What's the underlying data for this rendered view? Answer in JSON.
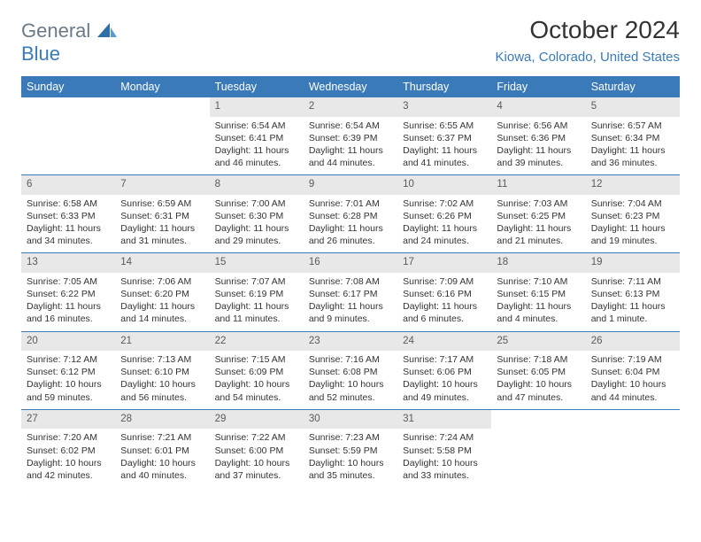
{
  "logo": {
    "word1": "General",
    "word2": "Blue"
  },
  "title": "October 2024",
  "location": "Kiowa, Colorado, United States",
  "colors": {
    "header_bg": "#3a7ab8",
    "header_text": "#ffffff",
    "daynum_bg": "#e8e8e8",
    "border": "#3a7ab8",
    "logo_gray": "#6b7a87",
    "logo_blue": "#3a7ab8"
  },
  "weekdays": [
    "Sunday",
    "Monday",
    "Tuesday",
    "Wednesday",
    "Thursday",
    "Friday",
    "Saturday"
  ],
  "weeks": [
    [
      {
        "day": "",
        "sunrise": "",
        "sunset": "",
        "daylight": ""
      },
      {
        "day": "",
        "sunrise": "",
        "sunset": "",
        "daylight": ""
      },
      {
        "day": "1",
        "sunrise": "Sunrise: 6:54 AM",
        "sunset": "Sunset: 6:41 PM",
        "daylight": "Daylight: 11 hours and 46 minutes."
      },
      {
        "day": "2",
        "sunrise": "Sunrise: 6:54 AM",
        "sunset": "Sunset: 6:39 PM",
        "daylight": "Daylight: 11 hours and 44 minutes."
      },
      {
        "day": "3",
        "sunrise": "Sunrise: 6:55 AM",
        "sunset": "Sunset: 6:37 PM",
        "daylight": "Daylight: 11 hours and 41 minutes."
      },
      {
        "day": "4",
        "sunrise": "Sunrise: 6:56 AM",
        "sunset": "Sunset: 6:36 PM",
        "daylight": "Daylight: 11 hours and 39 minutes."
      },
      {
        "day": "5",
        "sunrise": "Sunrise: 6:57 AM",
        "sunset": "Sunset: 6:34 PM",
        "daylight": "Daylight: 11 hours and 36 minutes."
      }
    ],
    [
      {
        "day": "6",
        "sunrise": "Sunrise: 6:58 AM",
        "sunset": "Sunset: 6:33 PM",
        "daylight": "Daylight: 11 hours and 34 minutes."
      },
      {
        "day": "7",
        "sunrise": "Sunrise: 6:59 AM",
        "sunset": "Sunset: 6:31 PM",
        "daylight": "Daylight: 11 hours and 31 minutes."
      },
      {
        "day": "8",
        "sunrise": "Sunrise: 7:00 AM",
        "sunset": "Sunset: 6:30 PM",
        "daylight": "Daylight: 11 hours and 29 minutes."
      },
      {
        "day": "9",
        "sunrise": "Sunrise: 7:01 AM",
        "sunset": "Sunset: 6:28 PM",
        "daylight": "Daylight: 11 hours and 26 minutes."
      },
      {
        "day": "10",
        "sunrise": "Sunrise: 7:02 AM",
        "sunset": "Sunset: 6:26 PM",
        "daylight": "Daylight: 11 hours and 24 minutes."
      },
      {
        "day": "11",
        "sunrise": "Sunrise: 7:03 AM",
        "sunset": "Sunset: 6:25 PM",
        "daylight": "Daylight: 11 hours and 21 minutes."
      },
      {
        "day": "12",
        "sunrise": "Sunrise: 7:04 AM",
        "sunset": "Sunset: 6:23 PM",
        "daylight": "Daylight: 11 hours and 19 minutes."
      }
    ],
    [
      {
        "day": "13",
        "sunrise": "Sunrise: 7:05 AM",
        "sunset": "Sunset: 6:22 PM",
        "daylight": "Daylight: 11 hours and 16 minutes."
      },
      {
        "day": "14",
        "sunrise": "Sunrise: 7:06 AM",
        "sunset": "Sunset: 6:20 PM",
        "daylight": "Daylight: 11 hours and 14 minutes."
      },
      {
        "day": "15",
        "sunrise": "Sunrise: 7:07 AM",
        "sunset": "Sunset: 6:19 PM",
        "daylight": "Daylight: 11 hours and 11 minutes."
      },
      {
        "day": "16",
        "sunrise": "Sunrise: 7:08 AM",
        "sunset": "Sunset: 6:17 PM",
        "daylight": "Daylight: 11 hours and 9 minutes."
      },
      {
        "day": "17",
        "sunrise": "Sunrise: 7:09 AM",
        "sunset": "Sunset: 6:16 PM",
        "daylight": "Daylight: 11 hours and 6 minutes."
      },
      {
        "day": "18",
        "sunrise": "Sunrise: 7:10 AM",
        "sunset": "Sunset: 6:15 PM",
        "daylight": "Daylight: 11 hours and 4 minutes."
      },
      {
        "day": "19",
        "sunrise": "Sunrise: 7:11 AM",
        "sunset": "Sunset: 6:13 PM",
        "daylight": "Daylight: 11 hours and 1 minute."
      }
    ],
    [
      {
        "day": "20",
        "sunrise": "Sunrise: 7:12 AM",
        "sunset": "Sunset: 6:12 PM",
        "daylight": "Daylight: 10 hours and 59 minutes."
      },
      {
        "day": "21",
        "sunrise": "Sunrise: 7:13 AM",
        "sunset": "Sunset: 6:10 PM",
        "daylight": "Daylight: 10 hours and 56 minutes."
      },
      {
        "day": "22",
        "sunrise": "Sunrise: 7:15 AM",
        "sunset": "Sunset: 6:09 PM",
        "daylight": "Daylight: 10 hours and 54 minutes."
      },
      {
        "day": "23",
        "sunrise": "Sunrise: 7:16 AM",
        "sunset": "Sunset: 6:08 PM",
        "daylight": "Daylight: 10 hours and 52 minutes."
      },
      {
        "day": "24",
        "sunrise": "Sunrise: 7:17 AM",
        "sunset": "Sunset: 6:06 PM",
        "daylight": "Daylight: 10 hours and 49 minutes."
      },
      {
        "day": "25",
        "sunrise": "Sunrise: 7:18 AM",
        "sunset": "Sunset: 6:05 PM",
        "daylight": "Daylight: 10 hours and 47 minutes."
      },
      {
        "day": "26",
        "sunrise": "Sunrise: 7:19 AM",
        "sunset": "Sunset: 6:04 PM",
        "daylight": "Daylight: 10 hours and 44 minutes."
      }
    ],
    [
      {
        "day": "27",
        "sunrise": "Sunrise: 7:20 AM",
        "sunset": "Sunset: 6:02 PM",
        "daylight": "Daylight: 10 hours and 42 minutes."
      },
      {
        "day": "28",
        "sunrise": "Sunrise: 7:21 AM",
        "sunset": "Sunset: 6:01 PM",
        "daylight": "Daylight: 10 hours and 40 minutes."
      },
      {
        "day": "29",
        "sunrise": "Sunrise: 7:22 AM",
        "sunset": "Sunset: 6:00 PM",
        "daylight": "Daylight: 10 hours and 37 minutes."
      },
      {
        "day": "30",
        "sunrise": "Sunrise: 7:23 AM",
        "sunset": "Sunset: 5:59 PM",
        "daylight": "Daylight: 10 hours and 35 minutes."
      },
      {
        "day": "31",
        "sunrise": "Sunrise: 7:24 AM",
        "sunset": "Sunset: 5:58 PM",
        "daylight": "Daylight: 10 hours and 33 minutes."
      },
      {
        "day": "",
        "sunrise": "",
        "sunset": "",
        "daylight": ""
      },
      {
        "day": "",
        "sunrise": "",
        "sunset": "",
        "daylight": ""
      }
    ]
  ]
}
